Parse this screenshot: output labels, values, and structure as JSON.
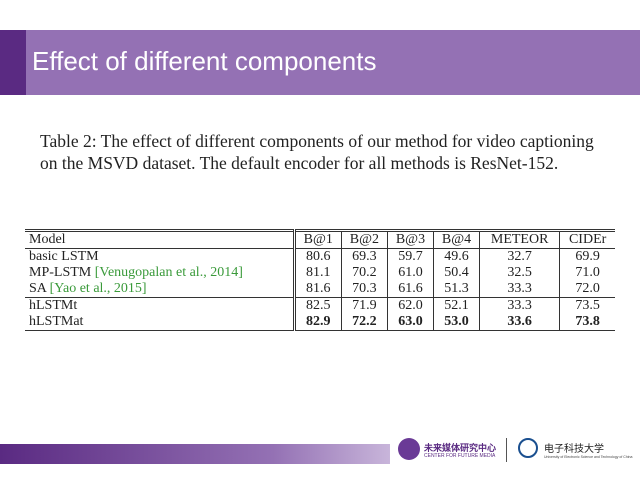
{
  "header": {
    "title": "Effect of different components"
  },
  "caption": "Table 2: The effect of different components of our method for video captioning on the MSVD dataset. The default encoder for all methods is ResNet-152.",
  "table": {
    "columns": [
      "Model",
      "B@1",
      "B@2",
      "B@3",
      "B@4",
      "METEOR",
      "CIDEr"
    ],
    "rows": [
      {
        "model": "basic LSTM",
        "values": [
          "80.6",
          "69.3",
          "59.7",
          "49.6",
          "32.7",
          "69.9"
        ]
      },
      {
        "model": "MP-LSTM",
        "cite": "[Venugopalan et al., 2014]",
        "values": [
          "81.1",
          "70.2",
          "61.0",
          "50.4",
          "32.5",
          "71.0"
        ]
      },
      {
        "model": "SA",
        "cite": "[Yao et al., 2015]",
        "values": [
          "81.6",
          "70.3",
          "61.6",
          "51.3",
          "33.3",
          "72.0"
        ]
      },
      {
        "model": "hLSTMt",
        "values": [
          "82.5",
          "71.9",
          "62.0",
          "52.1",
          "33.3",
          "73.5"
        ]
      },
      {
        "model": "hLSTMat",
        "values": [
          "82.9",
          "72.2",
          "63.0",
          "53.0",
          "33.6",
          "73.8"
        ]
      }
    ]
  },
  "footer": {
    "center_name": "未来媒体研究中心",
    "center_name_en": "CENTER FOR FUTURE MEDIA",
    "university": "电子科技大学",
    "university_en": "University of Electronic Science and Technology of China"
  }
}
